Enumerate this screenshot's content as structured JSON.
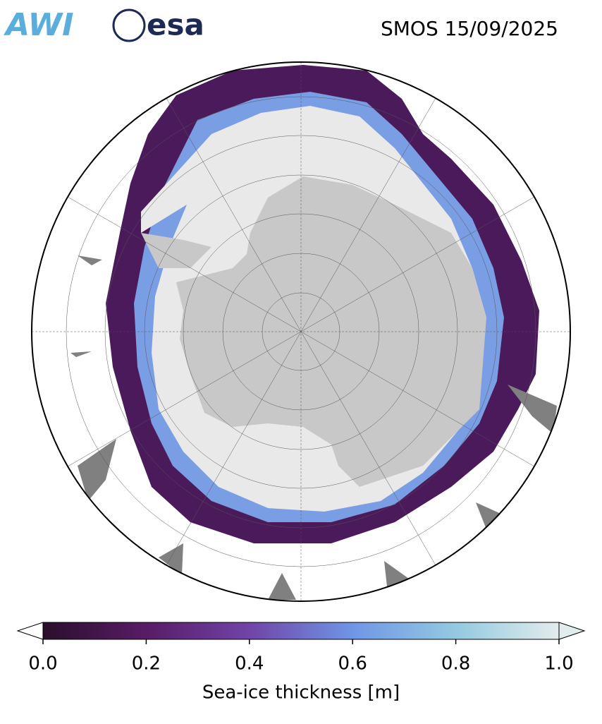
{
  "header": {
    "logo_awi": "AWI",
    "logo_esa": "esa",
    "title": "SMOS 15/09/2025"
  },
  "colorbar": {
    "label": "Sea-ice thickness [m]",
    "lim": [
      0,
      1
    ],
    "ticks": [
      {
        "value": 0,
        "label": "0.0"
      },
      {
        "value": 0.2,
        "label": "0.2"
      },
      {
        "value": 0.4,
        "label": "0.4"
      },
      {
        "value": 0.6,
        "label": "0.6"
      },
      {
        "value": 0.8,
        "label": "0.8"
      },
      {
        "value": 1,
        "label": "1.0"
      }
    ]
  }
}
